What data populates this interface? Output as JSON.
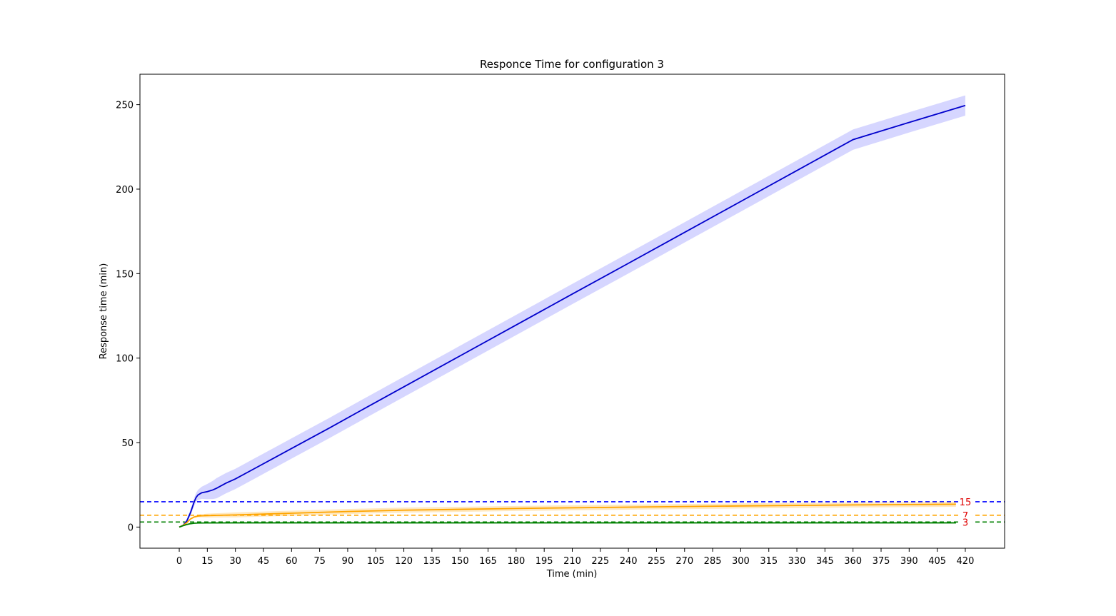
{
  "chart_data": {
    "type": "line",
    "title": "Responce Time for configuration 3",
    "xlabel": "Time (min)",
    "ylabel": "Response time (min)",
    "xlim": [
      -21,
      441
    ],
    "ylim": [
      -12.5,
      268
    ],
    "xticks": [
      0,
      15,
      30,
      45,
      60,
      75,
      90,
      105,
      120,
      135,
      150,
      165,
      180,
      195,
      210,
      225,
      240,
      255,
      270,
      285,
      300,
      315,
      330,
      345,
      360,
      375,
      390,
      405,
      420
    ],
    "yticks": [
      0,
      50,
      100,
      150,
      200,
      250
    ],
    "grid": false,
    "series": [
      {
        "color": "#0000cc",
        "band_color": "#c8c8ff",
        "x": [
          0,
          2,
          4,
          6,
          8,
          9,
          10,
          12,
          15,
          18,
          20,
          25,
          30,
          40,
          50,
          60,
          80,
          100,
          120,
          150,
          180,
          210,
          240,
          270,
          300,
          330,
          360,
          390,
          420
        ],
        "y": [
          0,
          1.0,
          3.5,
          8.5,
          15.0,
          17.5,
          19.0,
          20.3,
          21.0,
          22.0,
          23.0,
          26.0,
          28.5,
          34.5,
          40.5,
          46.5,
          58.5,
          70.8,
          83.0,
          101.3,
          119.6,
          137.9,
          156.1,
          174.4,
          192.7,
          211.0,
          229.3,
          239.5,
          249.5
        ],
        "band": 6
      },
      {
        "color": "#ffa500",
        "x": [
          0,
          2,
          4,
          6,
          8,
          10,
          12,
          15,
          30,
          60,
          90,
          120,
          180,
          240,
          300,
          360,
          415
        ],
        "y": [
          0,
          1.0,
          2.5,
          4.8,
          6.0,
          6.5,
          6.7,
          6.8,
          7.2,
          8.2,
          9.2,
          10.0,
          11.0,
          11.8,
          12.5,
          13.1,
          13.5
        ],
        "band": 1.5
      },
      {
        "color": "#008000",
        "x": [
          0,
          2,
          4,
          6,
          8,
          10,
          15,
          30,
          60,
          120,
          240,
          360,
          415
        ],
        "y": [
          0,
          0.8,
          1.5,
          2.0,
          2.3,
          2.4,
          2.45,
          2.5,
          2.5,
          2.5,
          2.5,
          2.5,
          2.5
        ],
        "band": 0.5
      }
    ],
    "thresholds": [
      {
        "value": 15,
        "label": "15",
        "color": "#0000ff",
        "label_color": "#e00000"
      },
      {
        "value": 7,
        "label": "7",
        "color": "#ffa500",
        "label_color": "#e00000"
      },
      {
        "value": 3,
        "label": "3",
        "color": "#008000",
        "label_color": "#e00000"
      }
    ]
  }
}
